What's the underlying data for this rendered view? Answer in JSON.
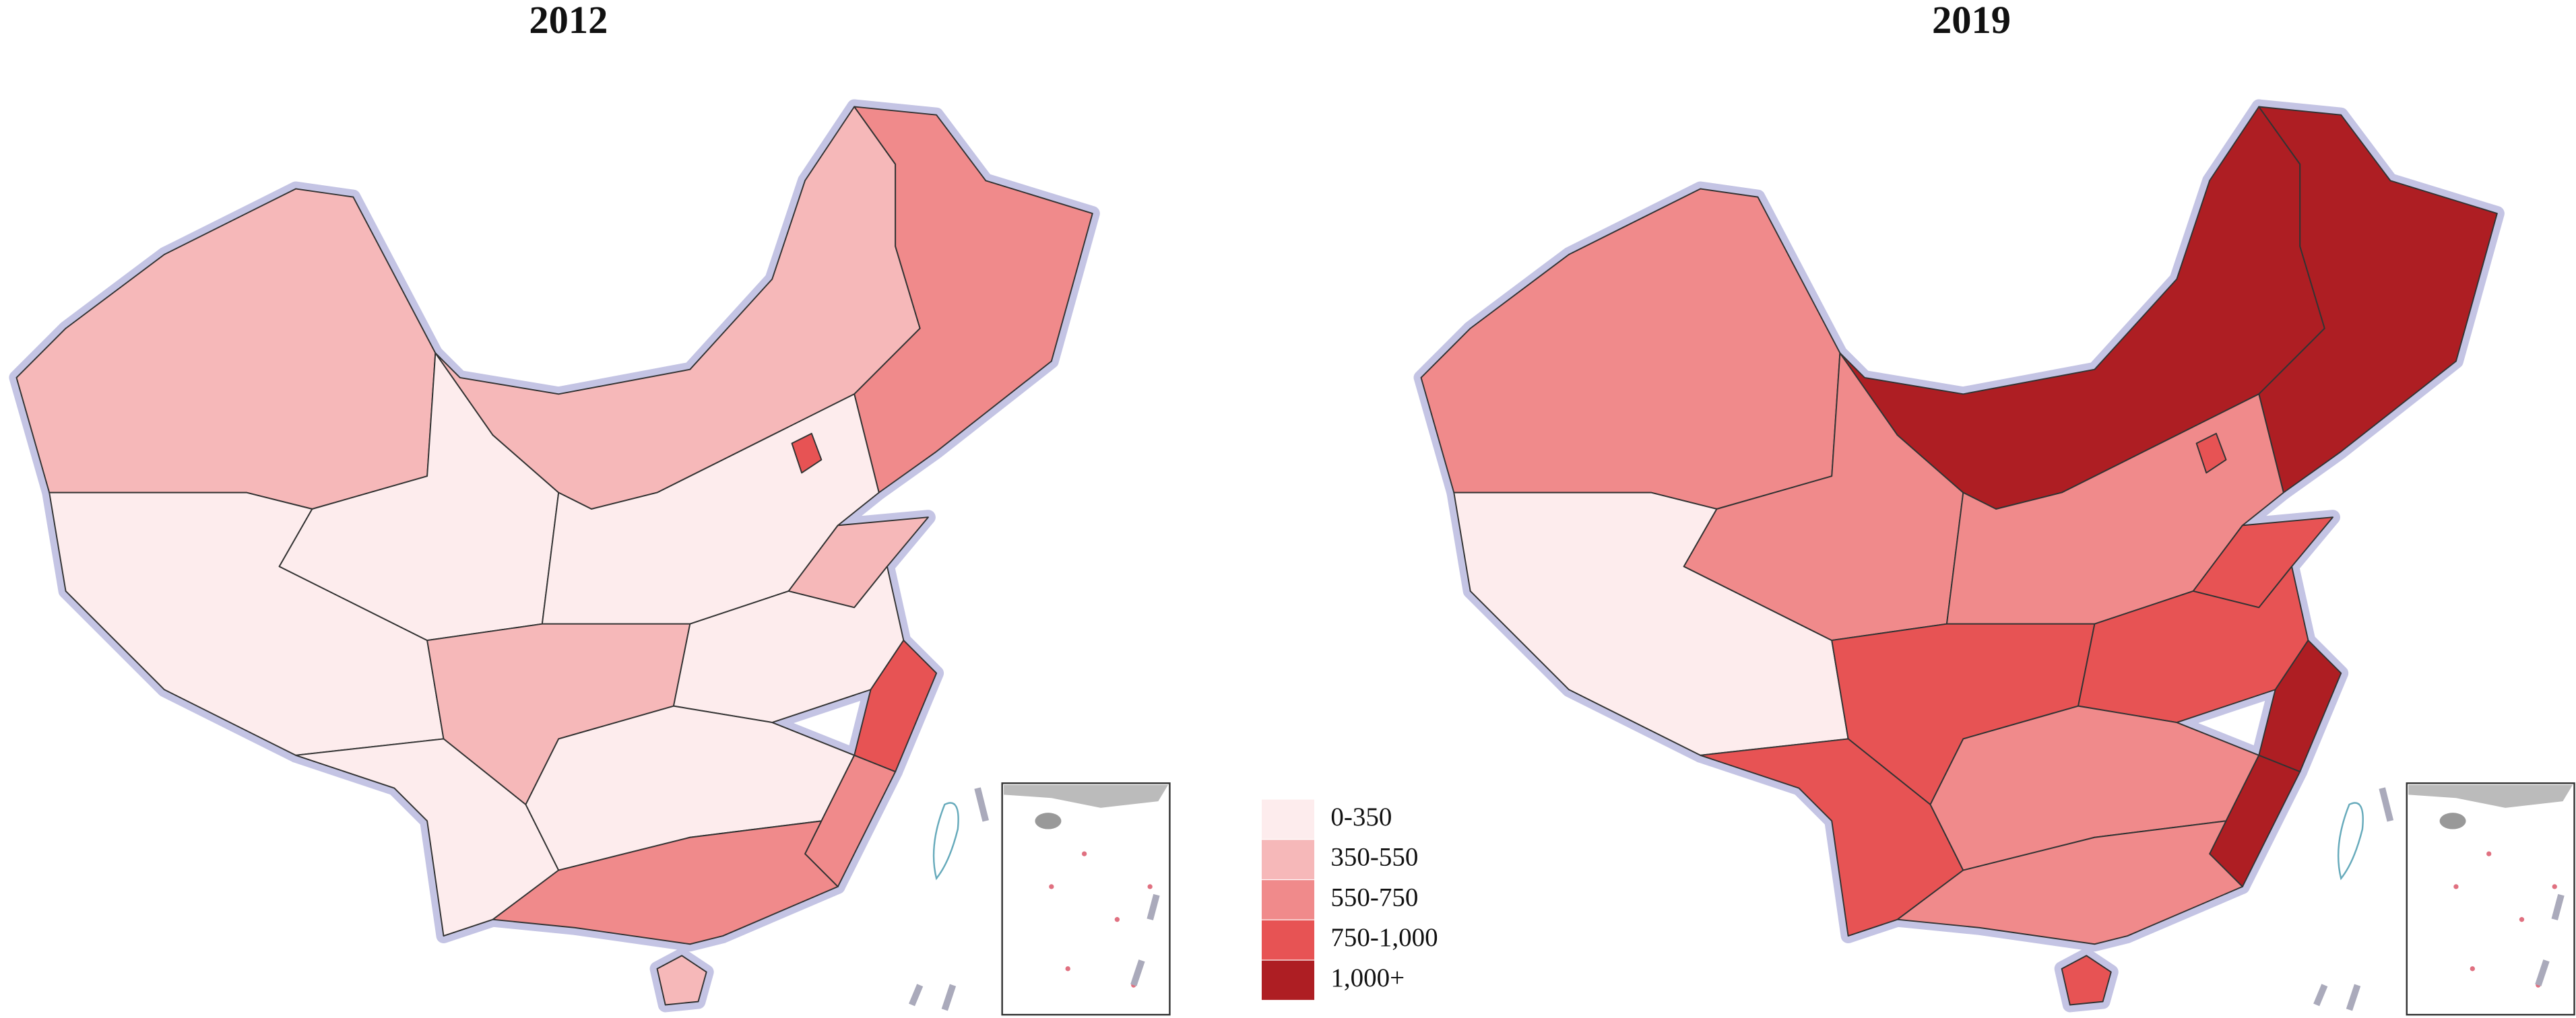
{
  "maps": [
    {
      "title": "2012"
    },
    {
      "title": "2019"
    }
  ],
  "legend": [
    {
      "label": "0-350",
      "color": "#fdeced"
    },
    {
      "label": "350-550",
      "color": "#f6b8b9"
    },
    {
      "label": "550-750",
      "color": "#f08a8b"
    },
    {
      "label": "750-1,000",
      "color": "#e75354"
    },
    {
      "label": "1,000+",
      "color": "#ae1e23"
    }
  ]
}
